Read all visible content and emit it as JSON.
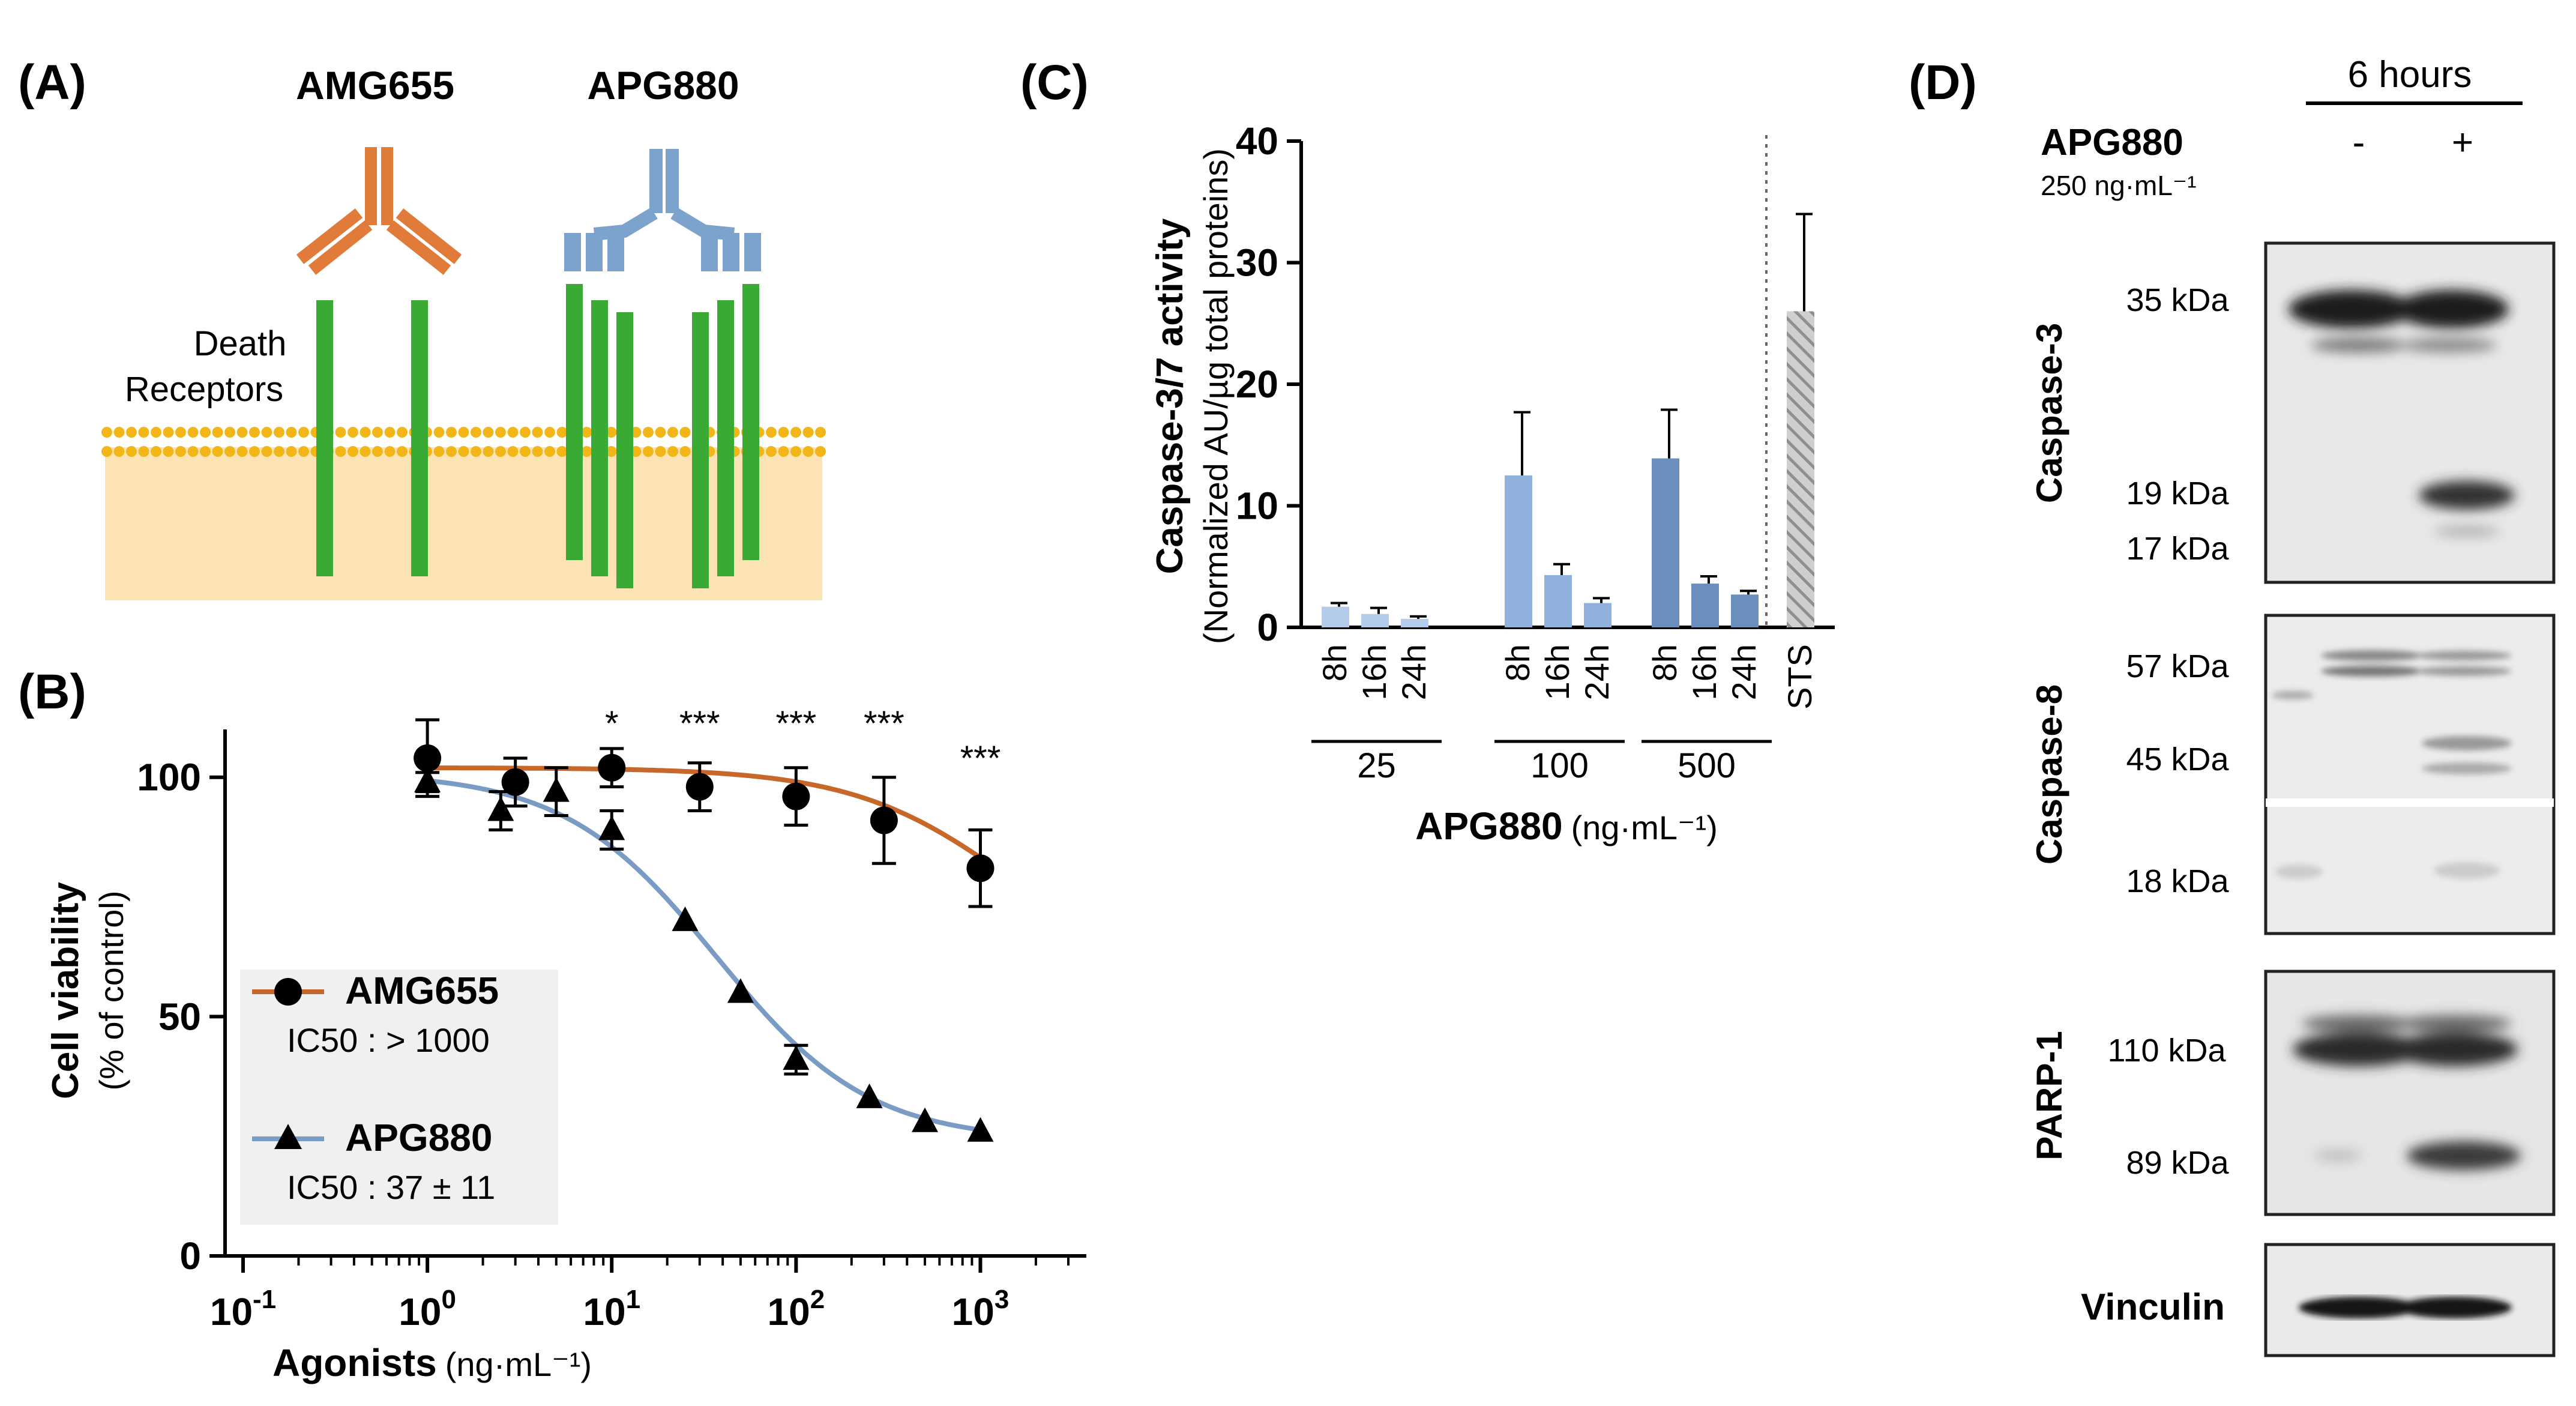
{
  "panels": {
    "a_label": "(A)",
    "b_label": "(B)",
    "c_label": "(C)",
    "d_label": "(D)"
  },
  "panel_a": {
    "antibody_1": "AMG655",
    "antibody_2": "APG880",
    "receptor_label_line1": "Death",
    "receptor_label_line2": "Receptors",
    "colors": {
      "amg655": "#e07b39",
      "apg880": "#7ba3cc",
      "receptor": "#3aaa35",
      "membrane": "#fce3b3",
      "lipid": "#f2b619"
    }
  },
  "chart_data": [
    {
      "id": "B",
      "type": "scatter",
      "xscale": "log",
      "xlim": [
        0.1,
        3000
      ],
      "ylim": [
        0,
        110
      ],
      "xlabel_bold": "Agonists",
      "xlabel_unit": "(ng·mL⁻¹)",
      "ylabel_bold": "Cell viability",
      "ylabel_sub": "(% of control)",
      "x_ticks": [
        {
          "value": 0.1,
          "base": "10",
          "exp": "-1"
        },
        {
          "value": 1,
          "base": "10",
          "exp": "0"
        },
        {
          "value": 10,
          "base": "10",
          "exp": "1"
        },
        {
          "value": 100,
          "base": "10",
          "exp": "2"
        },
        {
          "value": 1000,
          "base": "10",
          "exp": "3"
        }
      ],
      "y_ticks": [
        {
          "value": 0,
          "label": "0"
        },
        {
          "value": 50,
          "label": "50"
        },
        {
          "value": 100,
          "label": "100"
        }
      ],
      "series": [
        {
          "name": "AMG655",
          "ic50": "IC50 : > 1000",
          "marker": "circle",
          "color": "#c8672a",
          "x": [
            1,
            3,
            10,
            30,
            100,
            300,
            1000
          ],
          "y": [
            104,
            99,
            102,
            98,
            96,
            91,
            81
          ],
          "err": [
            8,
            5,
            4,
            5,
            6,
            9,
            8
          ],
          "fit": {
            "top": 102,
            "bottom": 55,
            "ic50": 1500,
            "hill": 1
          }
        },
        {
          "name": "APG880",
          "ic50": "IC50 : 37 ± 11",
          "marker": "triangle",
          "color": "#7a9cc4",
          "x": [
            1,
            2.5,
            5,
            10,
            25,
            50,
            100,
            250,
            500,
            1000
          ],
          "y": [
            99,
            93,
            97,
            89,
            70,
            55,
            41,
            33,
            28,
            26
          ],
          "err": [
            2,
            4,
            5,
            4,
            0,
            0,
            3,
            0,
            0,
            0
          ],
          "fit": {
            "top": 101,
            "bottom": 24,
            "ic50": 37,
            "hill": 1.05
          }
        }
      ],
      "significance": [
        {
          "x": 10,
          "label": "*"
        },
        {
          "x": 30,
          "label": "***"
        },
        {
          "x": 100,
          "label": "***"
        },
        {
          "x": 300,
          "label": "***"
        },
        {
          "x": 1000,
          "label": "***"
        }
      ]
    },
    {
      "id": "C",
      "type": "bar",
      "ylim": [
        0,
        40
      ],
      "ylabel_bold": "Caspase-3/7 activity",
      "ylabel_sub": "(Normalized AU/µg total proteins)",
      "xlabel_bold": "APG880",
      "xlabel_unit": "(ng·mL⁻¹)",
      "y_ticks": [
        {
          "value": 0,
          "label": "0"
        },
        {
          "value": 10,
          "label": "10"
        },
        {
          "value": 20,
          "label": "20"
        },
        {
          "value": 30,
          "label": "30"
        },
        {
          "value": 40,
          "label": "40"
        }
      ],
      "groups": [
        {
          "label": "25",
          "color": "#b4cbea",
          "bars": [
            {
              "label": "8h",
              "value": 1.7,
              "err": 0.3
            },
            {
              "label": "16h",
              "value": 1.1,
              "err": 0.5
            },
            {
              "label": "24h",
              "value": 0.7,
              "err": 0.2
            }
          ]
        },
        {
          "label": "100",
          "color": "#8fb1dc",
          "bars": [
            {
              "label": "8h",
              "value": 12.5,
              "err": 5.2
            },
            {
              "label": "16h",
              "value": 4.3,
              "err": 0.9
            },
            {
              "label": "24h",
              "value": 2.0,
              "err": 0.4
            }
          ]
        },
        {
          "label": "500",
          "color": "#6b8fbd",
          "bars": [
            {
              "label": "8h",
              "value": 13.9,
              "err": 4.0
            },
            {
              "label": "16h",
              "value": 3.6,
              "err": 0.6
            },
            {
              "label": "24h",
              "value": 2.7,
              "err": 0.3
            }
          ]
        }
      ],
      "control": {
        "label": "STS",
        "value": 26,
        "err": 8,
        "color": "#a8a8a8"
      }
    }
  ],
  "panel_d": {
    "time_label": "6 hours",
    "treatment": "APG880",
    "treatment_conc": "250 ng·mL⁻¹",
    "lane_minus": "-",
    "lane_plus": "+",
    "blots": [
      {
        "name": "Caspase-3",
        "markers": [
          "35 kDa",
          "19 kDa",
          "17 kDa"
        ]
      },
      {
        "name": "Caspase-8",
        "markers": [
          "57 kDa",
          "45 kDa",
          "18 kDa"
        ]
      },
      {
        "name": "PARP-1",
        "markers": [
          "110 kDa",
          "89 kDa"
        ]
      },
      {
        "name": "Vinculin",
        "markers": []
      }
    ]
  }
}
